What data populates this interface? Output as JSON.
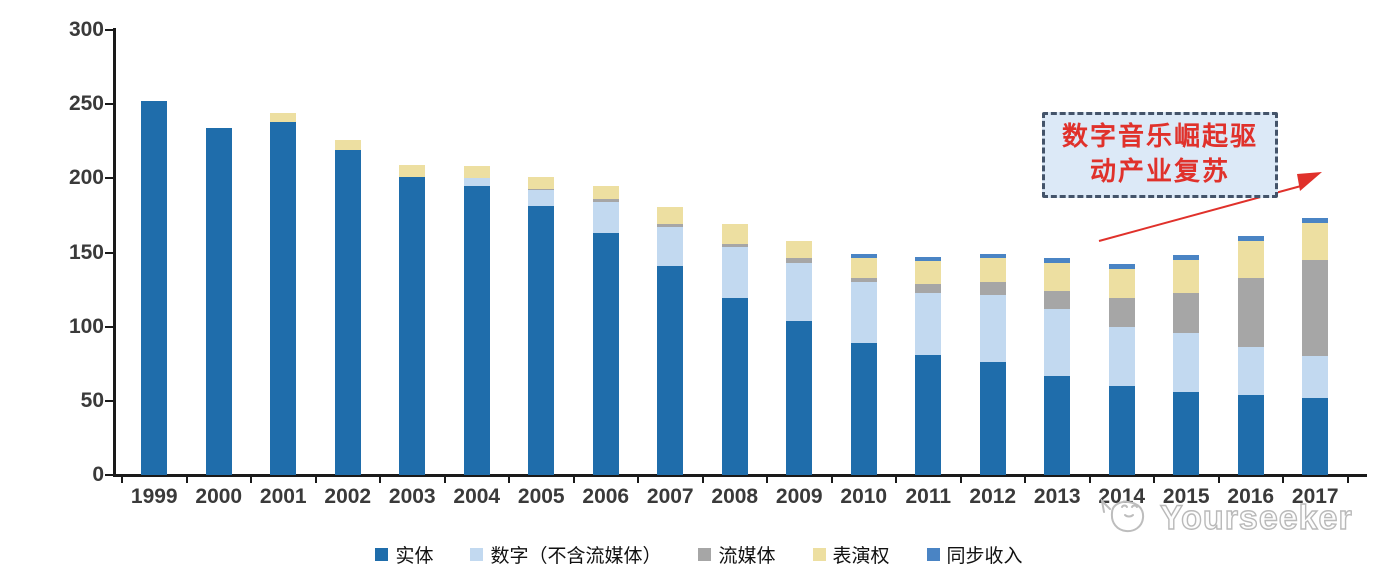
{
  "chart_data": {
    "type": "bar",
    "stacked": true,
    "title": "",
    "xlabel": "",
    "ylabel": "",
    "categories": [
      "1999",
      "2000",
      "2001",
      "2002",
      "2003",
      "2004",
      "2005",
      "2006",
      "2007",
      "2008",
      "2009",
      "2010",
      "2011",
      "2012",
      "2013",
      "2014",
      "2015",
      "2016",
      "2017"
    ],
    "series": [
      {
        "name": "实体",
        "color": "#1F6DAB",
        "values": [
          252,
          234,
          238,
          219,
          201,
          195,
          181,
          163,
          141,
          119,
          104,
          89,
          81,
          76,
          67,
          60,
          56,
          54,
          52
        ]
      },
      {
        "name": "数字（不含流媒体）",
        "color": "#C2D9F0",
        "values": [
          0,
          0,
          0,
          0,
          0,
          5,
          11,
          21,
          26,
          35,
          39,
          41,
          42,
          45,
          45,
          40,
          40,
          32,
          28
        ]
      },
      {
        "name": "流媒体",
        "color": "#A6A6A6",
        "values": [
          0,
          0,
          0,
          0,
          0,
          0,
          1,
          2,
          2,
          2,
          3,
          3,
          6,
          9,
          12,
          19,
          27,
          47,
          65
        ]
      },
      {
        "name": "表演权",
        "color": "#EDDFA1",
        "values": [
          0,
          0,
          6,
          7,
          8,
          8,
          8,
          9,
          12,
          13,
          12,
          13,
          15,
          16,
          19,
          20,
          22,
          25,
          25
        ]
      },
      {
        "name": "同步收入",
        "color": "#4A84C4",
        "values": [
          0,
          0,
          0,
          0,
          0,
          0,
          0,
          0,
          0,
          0,
          0,
          3,
          3,
          3,
          3,
          3,
          3,
          3,
          3
        ]
      }
    ],
    "ylim": [
      0,
      300
    ],
    "y_ticks": [
      0,
      50,
      100,
      150,
      200,
      250,
      300
    ],
    "grid": false,
    "legend_position": "bottom"
  },
  "annotation": {
    "line1": "数字音乐崛起驱",
    "line2": "动产业复苏",
    "text_color": "#E0312B",
    "border_color": "#44546A",
    "fill_color": "#DCE9F7",
    "arrow_color": "#E0312B"
  },
  "watermark": {
    "text": "Yourseeker"
  },
  "colors": {
    "axis": "#1a1a1a",
    "tick_label": "#3a3a3a"
  }
}
